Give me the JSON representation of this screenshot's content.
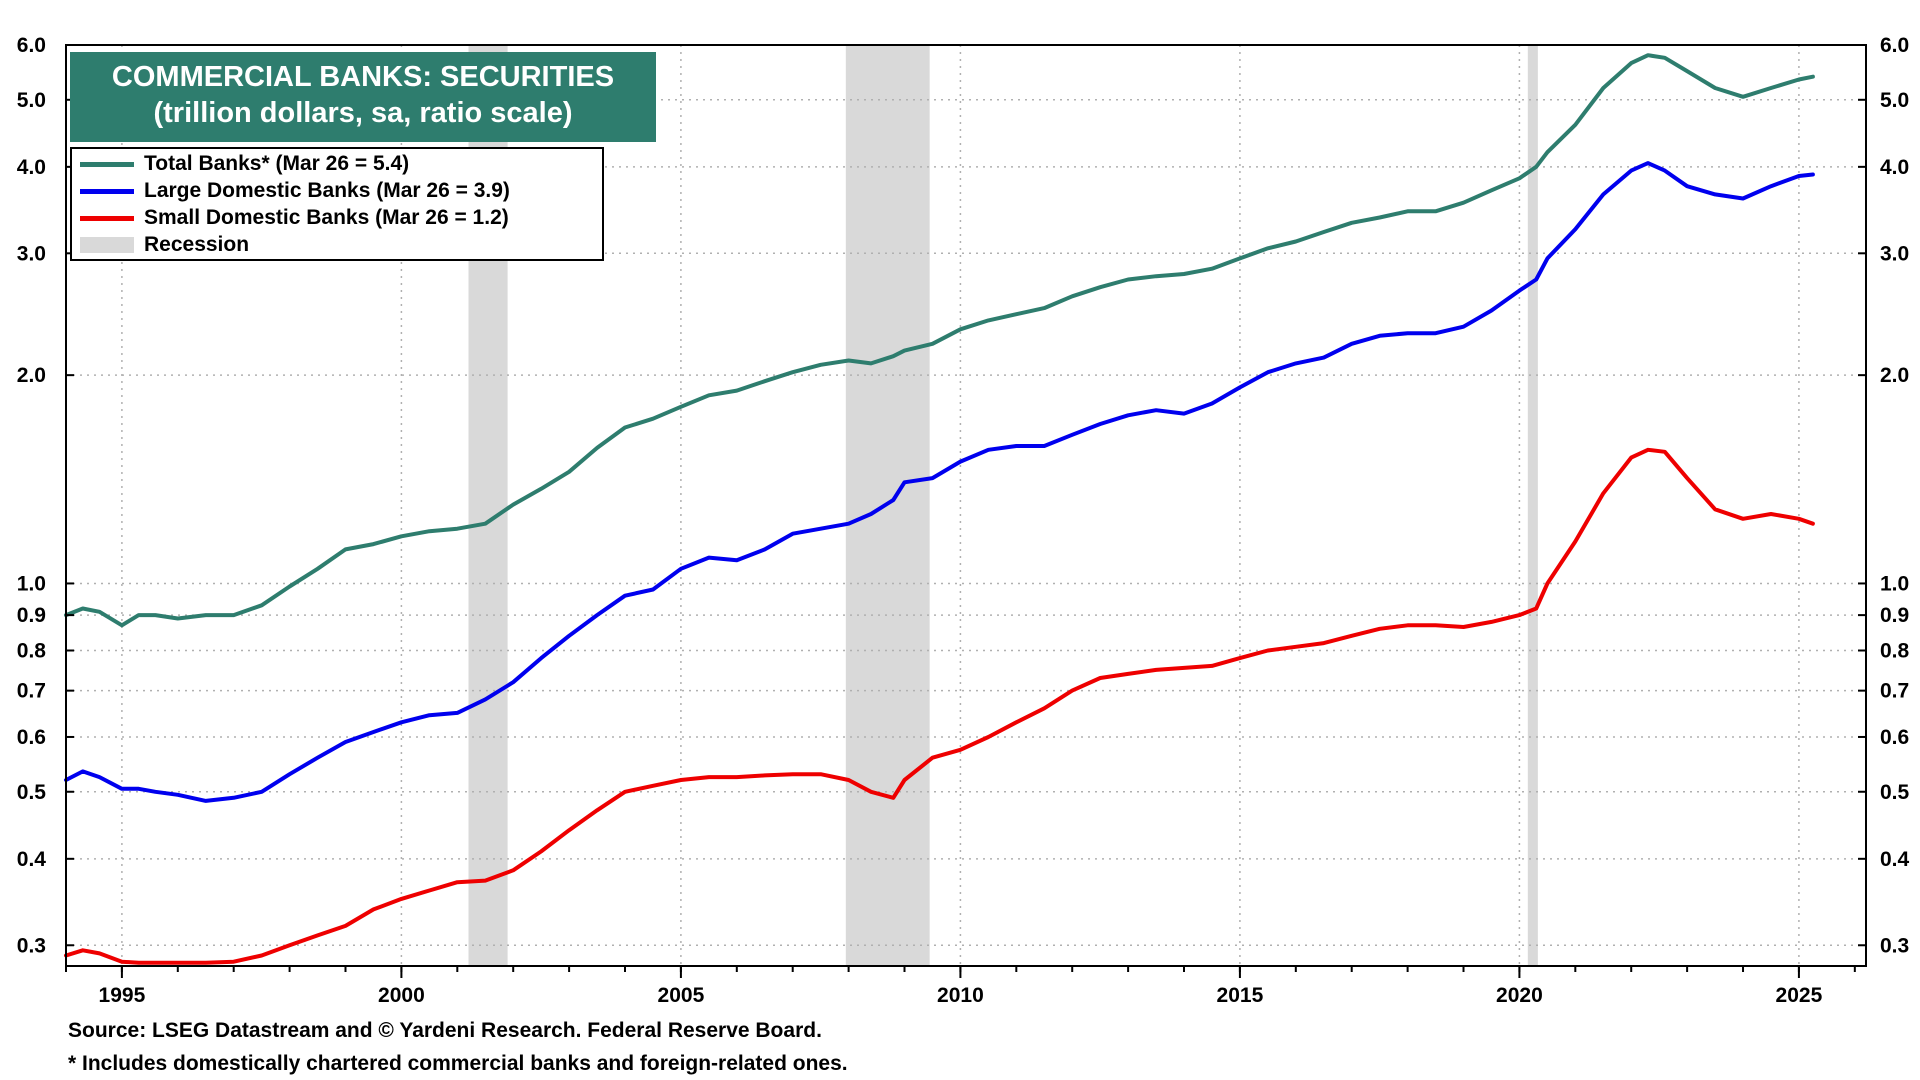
{
  "colors": {
    "total": "#2e7d6e",
    "large": "#0000ee",
    "small": "#ee0000",
    "recession": "#d9d9d9",
    "grid": "#b0b0b0",
    "title_bg": "#2e7d6e"
  },
  "chart_data": {
    "type": "line",
    "title": "COMMERCIAL BANKS: SECURITIES",
    "subtitle": "(trillion dollars, sa, ratio scale)",
    "yscale": "log",
    "ylim": [
      0.28,
      6.0
    ],
    "xlim": [
      1994.0,
      2026.2
    ],
    "x_ticks": [
      1995,
      2000,
      2005,
      2010,
      2015,
      2020,
      2025
    ],
    "x_tick_labels": [
      "1995",
      "2000",
      "2005",
      "2010",
      "2015",
      "2020",
      "2025"
    ],
    "y_ticks": [
      0.3,
      0.4,
      0.5,
      0.6,
      0.7,
      0.8,
      0.9,
      1.0,
      2.0,
      3.0,
      4.0,
      5.0,
      6.0
    ],
    "y_tick_labels": [
      "0.3",
      "0.4",
      "0.5",
      "0.6",
      "0.7",
      "0.8",
      "0.9",
      "1.0",
      "2.0",
      "3.0",
      "4.0",
      "5.0",
      "6.0"
    ],
    "recessions": [
      [
        2001.2,
        2001.9
      ],
      [
        2007.95,
        2009.45
      ],
      [
        2020.15,
        2020.33
      ]
    ],
    "legend": [
      {
        "key": "total",
        "label": "Total Banks* (Mar 26 = 5.4)"
      },
      {
        "key": "large",
        "label": "Large Domestic Banks (Mar 26 = 3.9)"
      },
      {
        "key": "small",
        "label": "Small Domestic Banks (Mar 26 = 1.2)"
      },
      {
        "key": "recession",
        "label": "Recession"
      }
    ],
    "series": [
      {
        "key": "total",
        "name": "Total Banks*",
        "x": [
          1994.0,
          1994.3,
          1994.6,
          1995.0,
          1995.3,
          1995.6,
          1996.0,
          1996.5,
          1997.0,
          1997.5,
          1998.0,
          1998.5,
          1999.0,
          1999.5,
          2000.0,
          2000.5,
          2001.0,
          2001.5,
          2002.0,
          2002.5,
          2003.0,
          2003.5,
          2004.0,
          2004.5,
          2005.0,
          2005.5,
          2006.0,
          2006.5,
          2007.0,
          2007.5,
          2008.0,
          2008.4,
          2008.8,
          2009.0,
          2009.5,
          2010.0,
          2010.5,
          2011.0,
          2011.5,
          2012.0,
          2012.5,
          2013.0,
          2013.5,
          2014.0,
          2014.5,
          2015.0,
          2015.5,
          2016.0,
          2016.5,
          2017.0,
          2017.5,
          2018.0,
          2018.5,
          2019.0,
          2019.5,
          2020.0,
          2020.3,
          2020.5,
          2021.0,
          2021.5,
          2022.0,
          2022.3,
          2022.6,
          2023.0,
          2023.5,
          2024.0,
          2024.5,
          2025.0,
          2025.25
        ],
        "values": [
          0.9,
          0.92,
          0.91,
          0.87,
          0.9,
          0.9,
          0.89,
          0.9,
          0.9,
          0.93,
          0.99,
          1.05,
          1.12,
          1.14,
          1.17,
          1.19,
          1.2,
          1.22,
          1.3,
          1.37,
          1.45,
          1.57,
          1.68,
          1.73,
          1.8,
          1.87,
          1.9,
          1.96,
          2.02,
          2.07,
          2.1,
          2.08,
          2.13,
          2.17,
          2.22,
          2.33,
          2.4,
          2.45,
          2.5,
          2.6,
          2.68,
          2.75,
          2.78,
          2.8,
          2.85,
          2.95,
          3.05,
          3.12,
          3.22,
          3.32,
          3.38,
          3.45,
          3.45,
          3.55,
          3.7,
          3.85,
          4.0,
          4.2,
          4.6,
          5.2,
          5.65,
          5.8,
          5.75,
          5.5,
          5.2,
          5.05,
          5.2,
          5.35,
          5.4
        ]
      },
      {
        "key": "large",
        "name": "Large Domestic Banks",
        "x": [
          1994.0,
          1994.3,
          1994.6,
          1995.0,
          1995.3,
          1995.6,
          1996.0,
          1996.5,
          1997.0,
          1997.5,
          1998.0,
          1998.5,
          1999.0,
          1999.5,
          2000.0,
          2000.5,
          2001.0,
          2001.5,
          2002.0,
          2002.5,
          2003.0,
          2003.5,
          2004.0,
          2004.5,
          2005.0,
          2005.5,
          2006.0,
          2006.5,
          2007.0,
          2007.5,
          2008.0,
          2008.4,
          2008.8,
          2009.0,
          2009.5,
          2010.0,
          2010.5,
          2011.0,
          2011.5,
          2012.0,
          2012.5,
          2013.0,
          2013.5,
          2014.0,
          2014.5,
          2015.0,
          2015.5,
          2016.0,
          2016.5,
          2017.0,
          2017.5,
          2018.0,
          2018.5,
          2019.0,
          2019.5,
          2020.0,
          2020.3,
          2020.5,
          2021.0,
          2021.5,
          2022.0,
          2022.3,
          2022.6,
          2023.0,
          2023.5,
          2024.0,
          2024.5,
          2025.0,
          2025.25
        ],
        "values": [
          0.52,
          0.535,
          0.525,
          0.505,
          0.505,
          0.5,
          0.495,
          0.485,
          0.49,
          0.5,
          0.53,
          0.56,
          0.59,
          0.61,
          0.63,
          0.645,
          0.65,
          0.68,
          0.72,
          0.78,
          0.84,
          0.9,
          0.96,
          0.98,
          1.05,
          1.09,
          1.08,
          1.12,
          1.18,
          1.2,
          1.22,
          1.26,
          1.32,
          1.4,
          1.42,
          1.5,
          1.56,
          1.58,
          1.58,
          1.64,
          1.7,
          1.75,
          1.78,
          1.76,
          1.82,
          1.92,
          2.02,
          2.08,
          2.12,
          2.22,
          2.28,
          2.3,
          2.3,
          2.35,
          2.48,
          2.65,
          2.75,
          2.95,
          3.25,
          3.65,
          3.95,
          4.05,
          3.95,
          3.75,
          3.65,
          3.6,
          3.75,
          3.88,
          3.9
        ]
      },
      {
        "key": "small",
        "name": "Small Domestic Banks",
        "x": [
          1994.0,
          1994.3,
          1994.6,
          1995.0,
          1995.3,
          1995.6,
          1996.0,
          1996.5,
          1997.0,
          1997.5,
          1998.0,
          1998.5,
          1999.0,
          1999.5,
          2000.0,
          2000.5,
          2001.0,
          2001.5,
          2002.0,
          2002.5,
          2003.0,
          2003.5,
          2004.0,
          2004.5,
          2005.0,
          2005.5,
          2006.0,
          2006.5,
          2007.0,
          2007.5,
          2008.0,
          2008.4,
          2008.8,
          2009.0,
          2009.5,
          2010.0,
          2010.5,
          2011.0,
          2011.5,
          2012.0,
          2012.5,
          2013.0,
          2013.5,
          2014.0,
          2014.5,
          2015.0,
          2015.5,
          2016.0,
          2016.5,
          2017.0,
          2017.5,
          2018.0,
          2018.5,
          2019.0,
          2019.5,
          2020.0,
          2020.3,
          2020.5,
          2021.0,
          2021.5,
          2022.0,
          2022.3,
          2022.6,
          2023.0,
          2023.5,
          2024.0,
          2024.5,
          2025.0,
          2025.25
        ],
        "values": [
          0.29,
          0.295,
          0.292,
          0.284,
          0.283,
          0.283,
          0.283,
          0.283,
          0.284,
          0.29,
          0.3,
          0.31,
          0.32,
          0.338,
          0.35,
          0.36,
          0.37,
          0.372,
          0.385,
          0.41,
          0.44,
          0.47,
          0.5,
          0.51,
          0.52,
          0.525,
          0.525,
          0.528,
          0.53,
          0.53,
          0.52,
          0.5,
          0.49,
          0.52,
          0.56,
          0.575,
          0.6,
          0.63,
          0.66,
          0.7,
          0.73,
          0.74,
          0.75,
          0.755,
          0.76,
          0.78,
          0.8,
          0.81,
          0.82,
          0.84,
          0.86,
          0.87,
          0.87,
          0.865,
          0.88,
          0.9,
          0.92,
          1.0,
          1.15,
          1.35,
          1.52,
          1.56,
          1.55,
          1.42,
          1.28,
          1.24,
          1.26,
          1.24,
          1.22
        ]
      }
    ],
    "sources": [
      "Source: LSEG Datastream and © Yardeni Research. Federal Reserve Board.",
      "* Includes domestically chartered commercial banks and foreign-related ones."
    ]
  }
}
